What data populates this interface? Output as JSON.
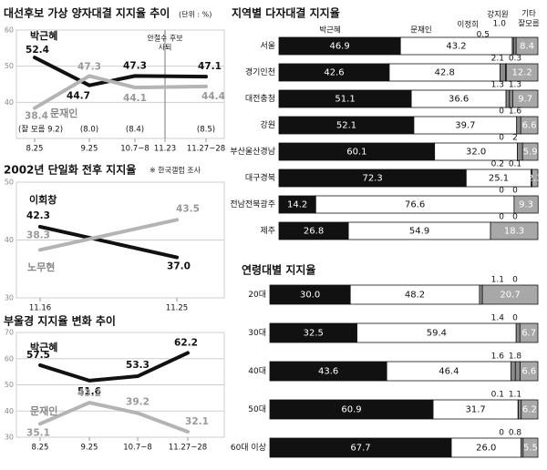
{
  "colors": {
    "black": "#111111",
    "gray": "#b4b4b4",
    "midgray": "#777777",
    "grid": "#cfcfcf"
  },
  "chart_data": [
    {
      "type": "line",
      "title": "대선후보 가상 양자대결 지지율 추이",
      "unit_note": "(단위 : %)",
      "ylim": [
        30,
        60
      ],
      "yticks": [
        "60",
        "50",
        "40"
      ],
      "categories": [
        "8.25",
        "9.25",
        "10.7~8",
        "11.23",
        "11.27~28"
      ],
      "note": "안철수 후보 사퇴",
      "undecided_label": "(잘 모름 9.2)",
      "undecided": [
        "(8.0)",
        "(8.4)",
        "(8.5)"
      ],
      "series": [
        {
          "name": "박근혜",
          "color": "black",
          "values": [
            52.4,
            44.7,
            47.3,
            null,
            47.1
          ]
        },
        {
          "name": "문재인",
          "color": "gray",
          "values": [
            38.4,
            47.3,
            44.1,
            null,
            44.4
          ]
        }
      ]
    },
    {
      "type": "line",
      "title": "2002년 단일화 전후 지지율",
      "note": "※ 한국갤럽 조사",
      "ylim": [
        30,
        50
      ],
      "yticks": [
        "50",
        "40",
        "30"
      ],
      "categories": [
        "11.16",
        "11.25"
      ],
      "series": [
        {
          "name": "이회창",
          "color": "black",
          "values": [
            42.3,
            37.0
          ]
        },
        {
          "name": "노무현",
          "color": "gray",
          "values": [
            38.3,
            43.5
          ]
        }
      ]
    },
    {
      "type": "line",
      "title": "부울경 지지율 변화 추이",
      "ylim": [
        30,
        70
      ],
      "yticks": [
        "70",
        "60",
        "50",
        "40",
        "30"
      ],
      "categories": [
        "8.25",
        "9.25",
        "10.7~8",
        "11.27~28"
      ],
      "series": [
        {
          "name": "박근혜",
          "color": "black",
          "values": [
            57.5,
            51.6,
            53.3,
            62.2
          ]
        },
        {
          "name": "문재인",
          "color": "gray",
          "values": [
            35.1,
            43.2,
            39.2,
            32.1
          ]
        }
      ]
    },
    {
      "type": "bar",
      "orientation": "horizontal-stacked",
      "title": "지역별 다자대결 지지율",
      "series": [
        "박근혜",
        "문재인",
        "이정희",
        "강지원",
        "기타 잘모름"
      ],
      "header_values": [
        "0.5",
        "1.0"
      ],
      "categories": [
        "서울",
        "경기인천",
        "대전충청",
        "강원",
        "부산울산경남",
        "대구경북",
        "전남전북광주",
        "제주"
      ],
      "values": [
        [
          46.9,
          43.2,
          0.5,
          1.0,
          8.4
        ],
        [
          42.6,
          42.8,
          2.1,
          0.3,
          12.2
        ],
        [
          51.1,
          36.6,
          1.3,
          1.3,
          9.7
        ],
        [
          52.1,
          39.7,
          0,
          1.6,
          6.6
        ],
        [
          60.1,
          32.0,
          0,
          2.0,
          5.9
        ],
        [
          72.3,
          25.1,
          0.2,
          0.1,
          2.3
        ],
        [
          14.2,
          76.6,
          0,
          0,
          9.3
        ],
        [
          26.8,
          54.9,
          0,
          0,
          18.3
        ]
      ]
    },
    {
      "type": "bar",
      "orientation": "horizontal-stacked",
      "title": "연령대별 지지율",
      "series": [
        "박근혜",
        "문재인",
        "이정희",
        "강지원",
        "기타 잘모름"
      ],
      "categories": [
        "20대",
        "30대",
        "40대",
        "50대",
        "60대 이상"
      ],
      "values": [
        [
          30.0,
          48.2,
          1.1,
          0,
          20.7
        ],
        [
          32.5,
          59.4,
          1.4,
          0,
          6.7
        ],
        [
          43.6,
          46.4,
          1.6,
          1.8,
          6.6
        ],
        [
          60.9,
          31.7,
          0.1,
          1.1,
          6.2
        ],
        [
          67.7,
          26.0,
          0,
          0.8,
          5.5
        ]
      ]
    }
  ]
}
